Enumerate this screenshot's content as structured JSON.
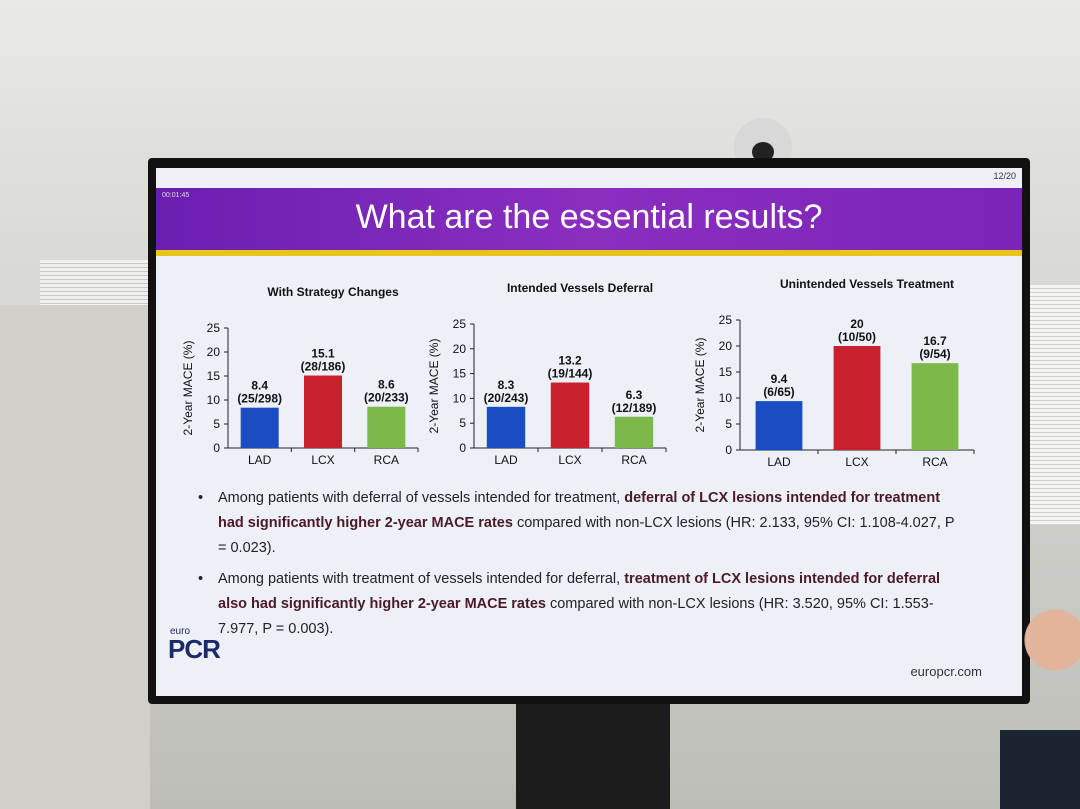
{
  "slide_title": "What are the essential results?",
  "slide_number": "12/20",
  "timer": "00:01:45",
  "logo": {
    "top": "euro",
    "main": "PCR"
  },
  "website": "europcr.com",
  "chart_data": [
    {
      "type": "bar",
      "title": "With Strategy Changes",
      "y_label": "2-Year MACE (%)",
      "categories": [
        "LAD",
        "LCX",
        "RCA"
      ],
      "values": [
        8.4,
        15.1,
        8.6
      ],
      "counts": [
        "(25/298)",
        "(28/186)",
        "(20/233)"
      ],
      "colors": [
        "#1a4cc4",
        "#c8202c",
        "#7cb84a"
      ],
      "ylim": [
        0,
        25
      ],
      "yticks": [
        0,
        5,
        10,
        15,
        20,
        25
      ]
    },
    {
      "type": "bar",
      "title": "Intended Vessels Deferral",
      "y_label": "2-Year MACE (%)",
      "categories": [
        "LAD",
        "LCX",
        "RCA"
      ],
      "values": [
        8.3,
        13.2,
        6.3
      ],
      "counts": [
        "(20/243)",
        "(19/144)",
        "(12/189)"
      ],
      "colors": [
        "#1a4cc4",
        "#c8202c",
        "#7cb84a"
      ],
      "ylim": [
        0,
        25
      ],
      "yticks": [
        0,
        5,
        10,
        15,
        20,
        25
      ]
    },
    {
      "type": "bar",
      "title": "Unintended Vessels Treatment",
      "y_label": "2-Year MACE (%)",
      "categories": [
        "LAD",
        "LCX",
        "RCA"
      ],
      "values": [
        9.4,
        20,
        16.7
      ],
      "counts": [
        "(6/65)",
        "(10/50)",
        "(9/54)"
      ],
      "colors": [
        "#1a4cc4",
        "#c8202c",
        "#7cb84a"
      ],
      "ylim": [
        0,
        25
      ],
      "yticks": [
        0,
        5,
        10,
        15,
        20,
        25
      ]
    }
  ],
  "bullets": [
    [
      {
        "text": "Among patients with deferral of vessels intended for treatment, ",
        "bold": false
      },
      {
        "text": "deferral of LCX lesions intended for treatment had significantly higher 2-year MACE rates",
        "bold": true
      },
      {
        "text": " compared with non-LCX lesions (HR: 2.133, 95% CI: 1.108-4.027, P = 0.023).",
        "bold": false
      }
    ],
    [
      {
        "text": "Among patients with treatment of vessels intended for deferral, ",
        "bold": false
      },
      {
        "text": "treatment of LCX lesions intended for deferral also had significantly higher 2-year MACE rates",
        "bold": true
      },
      {
        "text": " compared with non-LCX lesions (HR: 3.520, 95% CI: 1.553-7.977, P = 0.003).",
        "bold": false
      }
    ]
  ]
}
